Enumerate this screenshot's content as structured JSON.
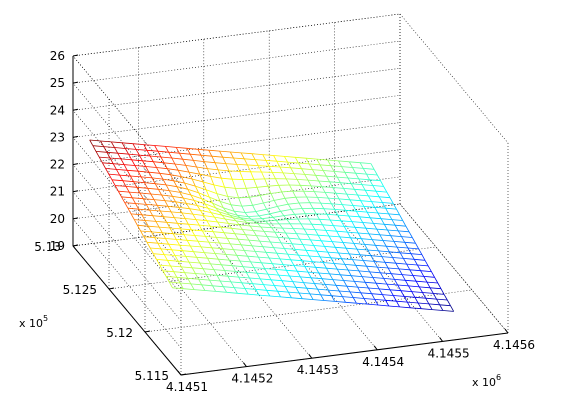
{
  "chart_data": {
    "type": "surface-mesh",
    "colormap": "jet",
    "grid": true,
    "x_axis": {
      "ticks": [
        "4.1451",
        "4.1452",
        "4.1453",
        "4.1454",
        "4.1455",
        "4.1456"
      ],
      "exponent_label": "x 10",
      "exponent": "6",
      "range": [
        4.1451,
        4.1456
      ]
    },
    "y_axis": {
      "ticks": [
        "5.115",
        "5.12",
        "5.125",
        "5.13"
      ],
      "exponent_label": "x 10",
      "exponent": "5",
      "range": [
        5.115,
        5.13
      ]
    },
    "z_axis": {
      "ticks": [
        "19",
        "20",
        "21",
        "22",
        "23",
        "24",
        "25",
        "26"
      ],
      "range": [
        19,
        26
      ]
    },
    "surface": {
      "x_range": [
        4.14512,
        4.14555
      ],
      "y_range": [
        5.118,
        5.1295
      ],
      "z_range_estimate": [
        19.0,
        23.0
      ],
      "description_values": {
        "high_corner_z": 23.0,
        "low_corner_z": 19.0
      }
    }
  }
}
